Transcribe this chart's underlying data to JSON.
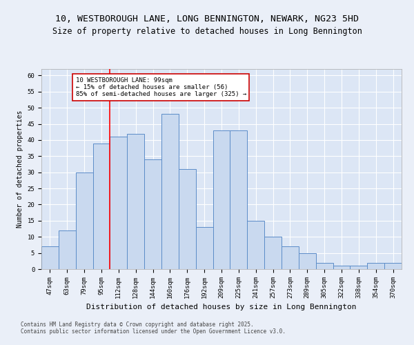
{
  "title1": "10, WESTBOROUGH LANE, LONG BENNINGTON, NEWARK, NG23 5HD",
  "title2": "Size of property relative to detached houses in Long Bennington",
  "xlabel": "Distribution of detached houses by size in Long Bennington",
  "ylabel": "Number of detached properties",
  "categories": [
    "47sqm",
    "63sqm",
    "79sqm",
    "95sqm",
    "112sqm",
    "128sqm",
    "144sqm",
    "160sqm",
    "176sqm",
    "192sqm",
    "209sqm",
    "225sqm",
    "241sqm",
    "257sqm",
    "273sqm",
    "289sqm",
    "305sqm",
    "322sqm",
    "338sqm",
    "354sqm",
    "370sqm"
  ],
  "values": [
    7,
    12,
    30,
    39,
    41,
    42,
    34,
    48,
    31,
    13,
    43,
    43,
    15,
    10,
    7,
    5,
    2,
    1,
    1,
    2,
    2
  ],
  "bar_color": "#c9d9ef",
  "bar_edge_color": "#5b8cc8",
  "red_line_index": 3.5,
  "annotation_text": "10 WESTBOROUGH LANE: 99sqm\n← 15% of detached houses are smaller (56)\n85% of semi-detached houses are larger (325) →",
  "annotation_box_color": "#ffffff",
  "annotation_box_edge": "#cc0000",
  "ylim": [
    0,
    62
  ],
  "yticks": [
    0,
    5,
    10,
    15,
    20,
    25,
    30,
    35,
    40,
    45,
    50,
    55,
    60
  ],
  "bg_color": "#eaeff8",
  "plot_bg": "#dce6f5",
  "grid_color": "#ffffff",
  "footer": "Contains HM Land Registry data © Crown copyright and database right 2025.\nContains public sector information licensed under the Open Government Licence v3.0.",
  "title1_fontsize": 9.5,
  "title2_fontsize": 8.5,
  "xlabel_fontsize": 8,
  "ylabel_fontsize": 7,
  "tick_fontsize": 6.5,
  "annotation_fontsize": 6.5,
  "footer_fontsize": 5.5
}
